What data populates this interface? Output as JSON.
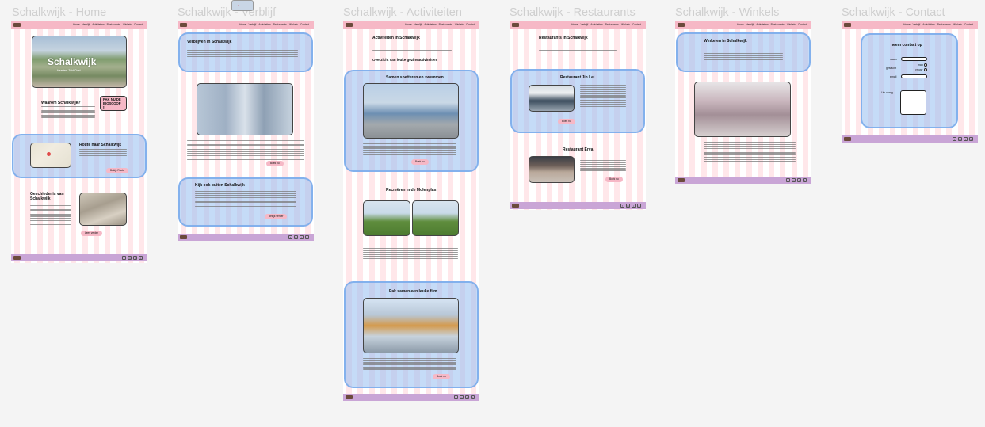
{
  "frames": [
    {
      "id": "home",
      "title": "Schalkwijk - Home"
    },
    {
      "id": "verblijf",
      "title": "Schalkwijk - Verblijf"
    },
    {
      "id": "activiteiten",
      "title": "Schalkwijk - Activiteiten"
    },
    {
      "id": "restaurants",
      "title": "Schalkwijk - Restaurants"
    },
    {
      "id": "winkels",
      "title": "Schalkwijk - Winkels"
    },
    {
      "id": "contact",
      "title": "Schalkwijk - Contact"
    }
  ],
  "nav": {
    "links": [
      "Home",
      "Verblijf",
      "Activiteiten",
      "Restaurants",
      "Winkels",
      "Contact"
    ]
  },
  "home": {
    "hero_title": "Schalkwijk",
    "hero_sub": "Haarlem Zuid-Oost",
    "section1_title": "Waarom Schalkwijk?",
    "cta": "PAK NU DE BIOSCOOP !!",
    "section2_title": "Route naar Schalkwijk",
    "section2_button": "Bekijk Route",
    "section3_title": "Geschiedenis van Schalkwijk",
    "section3_button": "Lees verder"
  },
  "verblijf": {
    "title": "Verblijven in Schalkwijk",
    "button1": "Boek nu",
    "section2_title": "Kijk ook buiten Schalkwijk",
    "button2": "Bekijk verder"
  },
  "activiteiten": {
    "title": "Activiteiten in Schalkwijk",
    "subtitle": "Overzicht van leuke gezinsactiviteiten",
    "card1_title": "Samen spetteren en zwemmen",
    "card1_button": "Boek nu",
    "card2_title": "Recreëren in de Molenplas",
    "card3_title": "Pak samen een leuke film",
    "card3_button": "Boek nu"
  },
  "restaurants": {
    "title": "Restaurants in Schalkwijk",
    "card1_title": "Restaurant Jin Lei",
    "card1_button": "Boek nu",
    "card2_title": "Restaurant Erva",
    "card2_button": "Boek nu"
  },
  "winkels": {
    "title": "Winkelen in Schalkwijk"
  },
  "contact": {
    "title": "neem contact op",
    "naam_label": "naam",
    "geslacht_label": "geslacht",
    "man_label": "man",
    "vrouw_label": "vrouw",
    "email_label": "email",
    "vraag_label": "Uw vraag"
  },
  "social_icons": [
    "facebook-icon",
    "linkedin-icon",
    "twitter-icon",
    "instagram-icon"
  ],
  "colors": {
    "nav": "#f6b8c6",
    "footer": "#c9a5d6",
    "highlight": "#96bef0",
    "grid": "#ff788c",
    "canvas": "#f4f4f4"
  }
}
